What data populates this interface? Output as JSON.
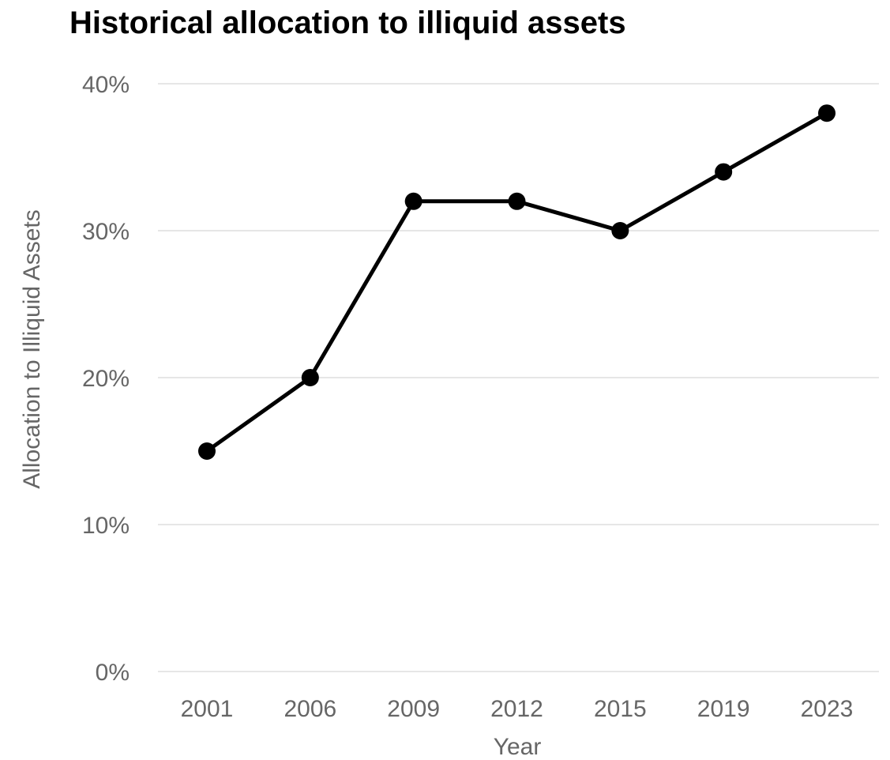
{
  "chart_data": {
    "type": "line",
    "title": "Historical allocation to illiquid assets",
    "xlabel": "Year",
    "ylabel": "Allocation to Illiquid Assets",
    "categories": [
      "2001",
      "2006",
      "2009",
      "2012",
      "2015",
      "2019",
      "2023"
    ],
    "series": [
      {
        "values": [
          15,
          20,
          32,
          32,
          30,
          34,
          38
        ],
        "color": "#000000"
      }
    ],
    "y_ticks": [
      0,
      10,
      20,
      30,
      40
    ],
    "y_tick_labels": [
      "0%",
      "10%",
      "20%",
      "30%",
      "40%"
    ],
    "ylim": [
      0,
      40
    ],
    "grid": true,
    "legend": "none"
  }
}
